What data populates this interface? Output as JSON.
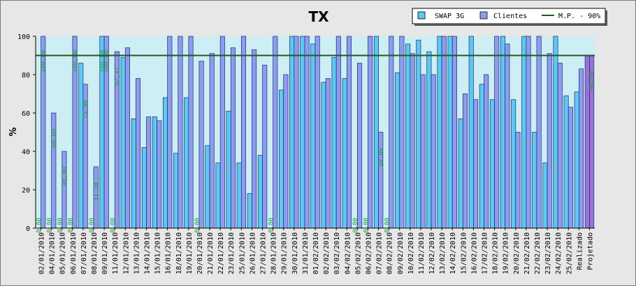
{
  "chart_data": {
    "type": "bar",
    "title": "TX",
    "ylabel": "%",
    "xlabel": "",
    "ylim": [
      0,
      100
    ],
    "yticks": [
      "0",
      "20",
      "40",
      "60",
      "80",
      "100"
    ],
    "grid": false,
    "legend_position": "top-right",
    "reference_line": {
      "name": "M.P. - 90%",
      "value": 90,
      "color": "#1f5a1f"
    },
    "colors": {
      "swap": "#5ec8f2",
      "clientes": "#8e9cf0",
      "projetado": "#9a72d8",
      "plot_bg": "#cdeef4",
      "labels": "#1d9e3a"
    },
    "categories": [
      "02/01/2010",
      "04/01/2010",
      "05/01/2010",
      "06/01/2010",
      "07/01/2010",
      "08/01/2010",
      "09/01/2010",
      "11/01/2010",
      "12/01/2010",
      "13/01/2010",
      "14/01/2010",
      "15/01/2010",
      "16/01/2010",
      "18/01/2010",
      "19/01/2010",
      "20/01/2010",
      "21/01/2010",
      "22/01/2010",
      "23/01/2010",
      "25/01/2010",
      "26/01/2010",
      "27/01/2010",
      "28/01/2010",
      "29/01/2010",
      "30/01/2010",
      "31/01/2010",
      "01/02/2010",
      "02/02/2010",
      "03/02/2010",
      "04/02/2010",
      "05/02/2010",
      "06/02/2010",
      "07/02/2010",
      "08/02/2010",
      "09/02/2010",
      "10/02/2010",
      "11/02/2010",
      "12/02/2010",
      "13/02/2010",
      "14/02/2010",
      "15/02/2010",
      "16/02/2010",
      "17/02/2010",
      "18/02/2010",
      "19/02/2010",
      "20/02/2010",
      "21/02/2010",
      "22/02/2010",
      "23/02/2010",
      "24/02/2010",
      "25/02/2010",
      "Realizado",
      "Projetado"
    ],
    "series": [
      {
        "name": "SWAP 3G",
        "values": [
          0,
          0,
          0,
          0,
          86,
          0,
          100,
          0,
          89,
          57,
          42,
          58,
          68,
          39,
          68,
          0,
          43,
          34,
          61,
          34,
          18,
          38,
          0,
          72,
          100,
          100,
          96,
          76,
          89,
          78,
          0,
          0,
          100,
          0,
          81,
          96,
          98,
          92,
          100,
          100,
          57,
          100,
          75,
          67,
          100,
          67,
          100,
          50,
          34,
          100,
          69,
          71,
          90
        ]
      },
      {
        "name": "Clientes",
        "values": [
          100,
          60,
          40,
          100,
          75,
          32,
          100,
          92,
          94,
          78,
          58,
          56,
          100,
          100,
          100,
          87,
          91,
          100,
          94,
          100,
          93,
          85,
          100,
          80,
          100,
          100,
          100,
          78,
          100,
          100,
          86,
          100,
          50,
          100,
          100,
          91,
          80,
          80,
          100,
          100,
          70,
          67,
          80,
          100,
          96,
          50,
          100,
          100,
          91,
          86,
          63,
          83,
          90
        ]
      }
    ],
    "data_labels": {
      "SWAP 3G": [
        "0,00",
        "0,00",
        "0,00",
        "0,00",
        "",
        "0,00",
        "100,00",
        "0,00",
        "",
        "",
        "",
        "",
        "",
        "",
        "",
        "0,00",
        "",
        "",
        "",
        "",
        "",
        "",
        "0,00",
        "",
        "",
        "",
        "",
        "",
        "",
        "",
        "0,00",
        "0,00",
        "",
        "0,00",
        "",
        "",
        "",
        "",
        "",
        "",
        "",
        "",
        "",
        "",
        "",
        "",
        "",
        "",
        "",
        "",
        "",
        "",
        ""
      ],
      "Clientes": [
        "100,00",
        "60,00",
        "40,00",
        "100,00",
        "75,00",
        "31,58",
        "100,00",
        "92,31",
        "",
        "",
        "",
        "",
        "",
        "",
        "",
        "",
        "",
        "",
        "",
        "",
        "",
        "",
        "",
        "",
        "",
        "",
        "",
        "",
        "",
        "",
        "",
        "",
        "50,00",
        "",
        "",
        "",
        "",
        "",
        "",
        "",
        "",
        "",
        "",
        "",
        "",
        "",
        "",
        "",
        "",
        "",
        "",
        "",
        "90,00"
      ]
    }
  }
}
